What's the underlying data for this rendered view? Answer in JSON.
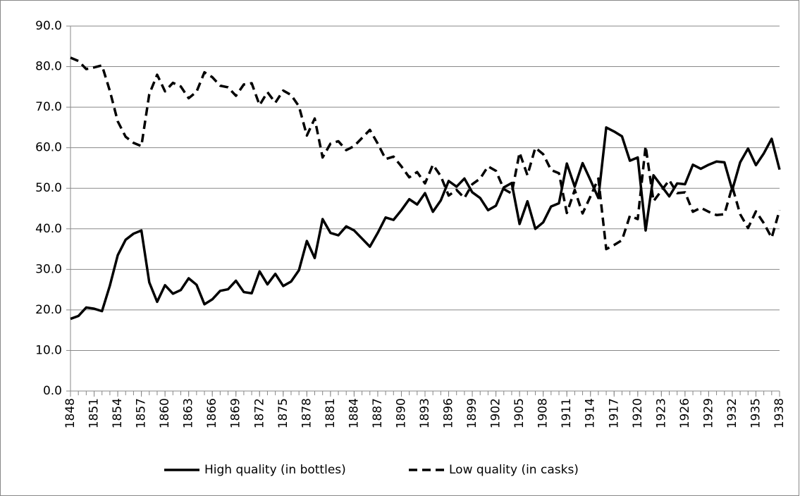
{
  "chart_data": {
    "type": "line",
    "x": [
      1848,
      1849,
      1850,
      1851,
      1852,
      1853,
      1854,
      1855,
      1856,
      1857,
      1858,
      1859,
      1860,
      1861,
      1862,
      1863,
      1864,
      1865,
      1866,
      1867,
      1868,
      1869,
      1870,
      1871,
      1872,
      1873,
      1874,
      1875,
      1876,
      1877,
      1878,
      1879,
      1880,
      1881,
      1882,
      1883,
      1884,
      1885,
      1886,
      1887,
      1888,
      1889,
      1890,
      1891,
      1892,
      1893,
      1894,
      1895,
      1896,
      1897,
      1898,
      1899,
      1900,
      1901,
      1902,
      1903,
      1904,
      1905,
      1906,
      1907,
      1908,
      1909,
      1910,
      1911,
      1912,
      1913,
      1914,
      1915,
      1916,
      1917,
      1918,
      1919,
      1920,
      1921,
      1922,
      1923,
      1924,
      1925,
      1926,
      1927,
      1928,
      1929,
      1930,
      1931,
      1932,
      1933,
      1934,
      1935,
      1936,
      1937,
      1938
    ],
    "series": [
      {
        "name": "High quality (in bottles)",
        "color": "#000000",
        "style": "solid",
        "values": [
          17.8,
          18.5,
          20.6,
          20.3,
          19.7,
          26,
          33.5,
          37.3,
          38.8,
          39.6,
          26.8,
          22,
          26.1,
          24,
          24.9,
          27.8,
          26.2,
          21.4,
          22.6,
          24.7,
          25.1,
          27.2,
          24.4,
          24.1,
          29.5,
          26.3,
          28.9,
          25.9,
          27,
          29.8,
          37,
          32.8,
          42.4,
          39,
          38.4,
          40.6,
          39.6,
          37.6,
          35.6,
          39,
          42.8,
          42.2,
          44.6,
          47.3,
          46,
          48.8,
          44.2,
          47,
          51.8,
          50.4,
          52.4,
          49,
          47.6,
          44.6,
          45.7,
          50.2,
          51.3,
          41.2,
          46.8,
          40,
          41.6,
          45.5,
          46.3,
          56.1,
          50.4,
          56.2,
          52,
          47.6,
          65,
          64,
          62.8,
          56.8,
          57.6,
          39.6,
          53.2,
          50.6,
          48,
          51.2,
          51,
          55.8,
          54.8,
          55.8,
          56.6,
          56.4,
          49.6,
          56.4,
          59.8,
          55.7,
          58.6,
          62.2,
          54.6
        ]
      },
      {
        "name": "Low quality (in casks)",
        "color": "#000000",
        "style": "dashed",
        "values": [
          82.2,
          81.4,
          79.4,
          79.8,
          80.3,
          74,
          66.5,
          62.7,
          61.2,
          60.4,
          73.2,
          78,
          73.9,
          76,
          75.1,
          72.2,
          73.8,
          78.6,
          77.4,
          75.3,
          74.9,
          72.8,
          75.6,
          75.9,
          70.5,
          73.7,
          71.1,
          74.1,
          73,
          70.2,
          63,
          67.2,
          57.6,
          61,
          61.6,
          59.4,
          60.4,
          62.4,
          64.4,
          61,
          57.2,
          57.8,
          55.4,
          52.7,
          54,
          51.2,
          55.8,
          53,
          48.2,
          49.6,
          47.6,
          51,
          52.4,
          55.4,
          54.3,
          49.8,
          48.7,
          58.8,
          53.2,
          60,
          58.4,
          54.5,
          53.7,
          43.9,
          49.6,
          43.8,
          48,
          52.4,
          35,
          36,
          37.2,
          43.2,
          42.4,
          60.4,
          46.8,
          49.4,
          52,
          48.8,
          49,
          44.2,
          45.2,
          44.2,
          43.4,
          43.6,
          50.4,
          43.6,
          40.2,
          44.3,
          41.4,
          37.8,
          44.6
        ]
      }
    ],
    "xlim": [
      1848,
      1938
    ],
    "xticks": [
      1848,
      1851,
      1854,
      1857,
      1860,
      1863,
      1866,
      1869,
      1872,
      1875,
      1878,
      1881,
      1884,
      1887,
      1890,
      1893,
      1896,
      1899,
      1902,
      1905,
      1908,
      1911,
      1914,
      1917,
      1920,
      1923,
      1926,
      1929,
      1932,
      1935,
      1938
    ],
    "ylim": [
      0,
      90
    ],
    "yticks": [
      {
        "value": 0,
        "label": "0.0"
      },
      {
        "value": 10,
        "label": "10.0"
      },
      {
        "value": 20,
        "label": "20.0"
      },
      {
        "value": 30,
        "label": "30.0"
      },
      {
        "value": 40,
        "label": "40.0"
      },
      {
        "value": 50,
        "label": "50.0"
      },
      {
        "value": 60,
        "label": "60.0"
      },
      {
        "value": 70,
        "label": "70.0"
      },
      {
        "value": 80,
        "label": "80.0"
      },
      {
        "value": 90,
        "label": "90.0"
      }
    ],
    "grid": true,
    "legend": "bottom"
  }
}
